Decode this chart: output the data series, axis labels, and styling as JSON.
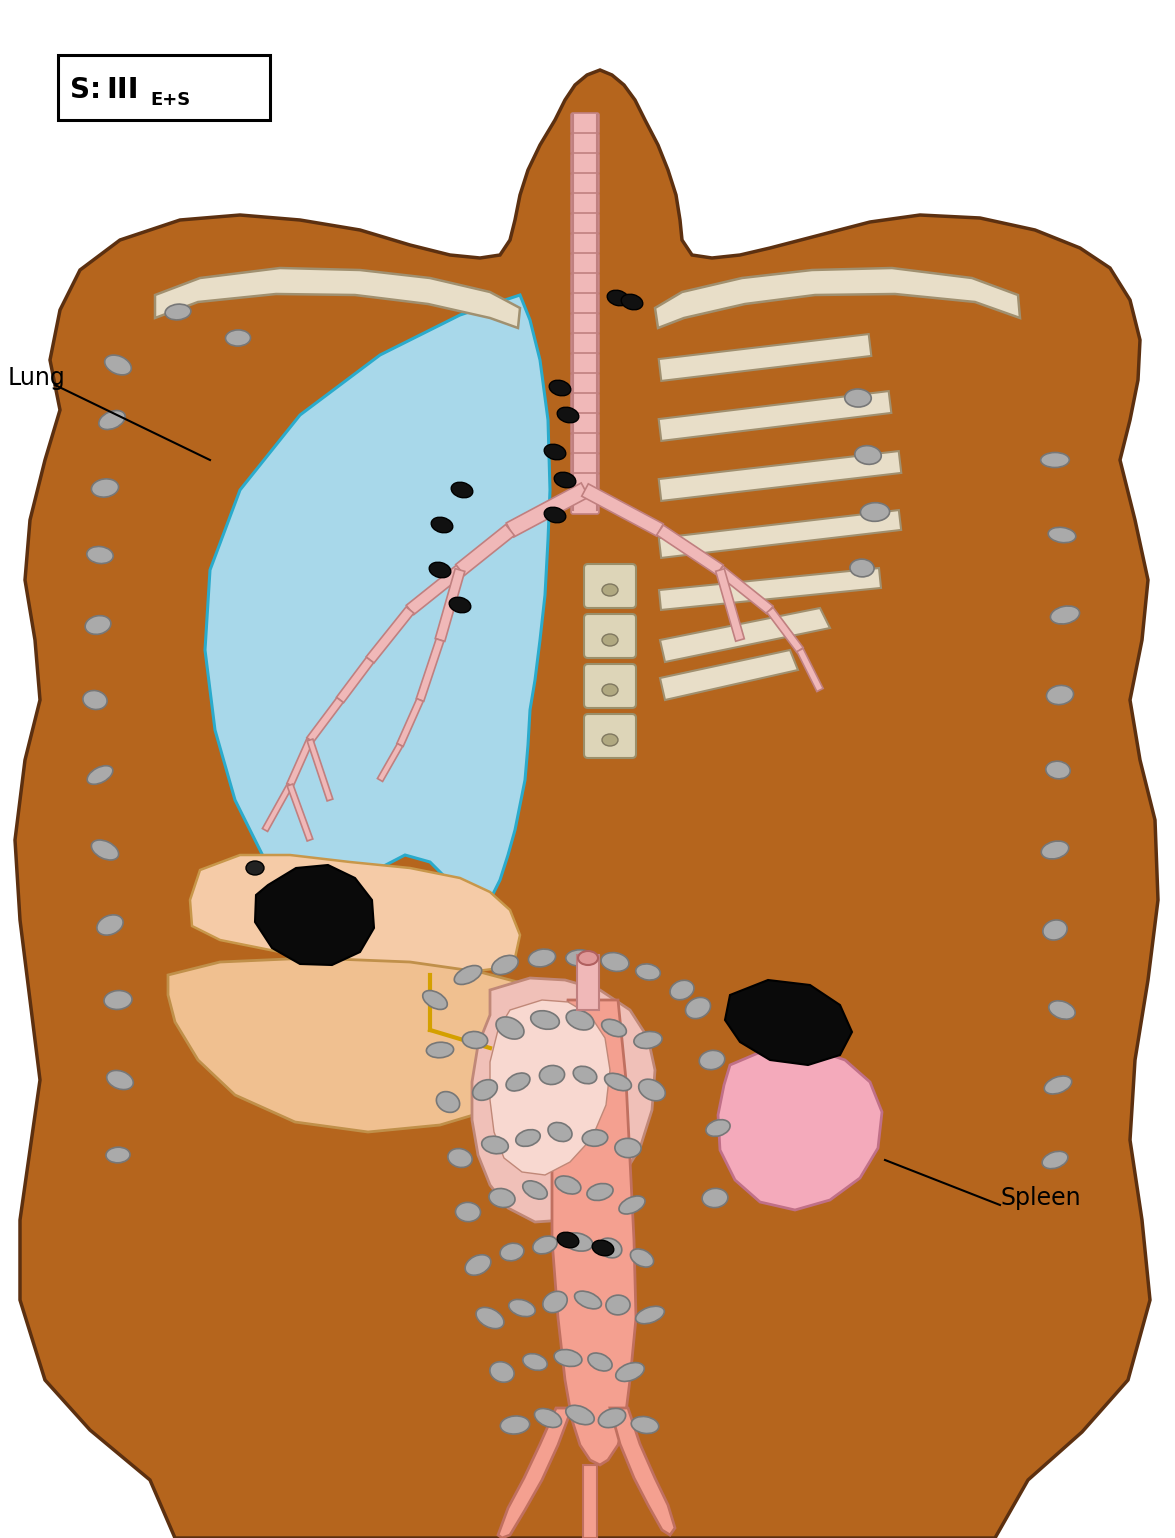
{
  "bg_color": "#FFFFFF",
  "skin_color": "#B5651D",
  "skin_outline": "#5C3010",
  "bone_color": "#E8DEC8",
  "bone_outline": "#A09070",
  "lung_blue": "#A8D8EA",
  "lung_outline": "#2AABCC",
  "diaphragm_color": "#F5CBA7",
  "diaphragm_outline": "#C8974A",
  "liver_color": "#F0C090",
  "liver_outline": "#C0904A",
  "stomach_color": "#F0C0B8",
  "stomach_outline": "#C08878",
  "spleen_color": "#F4AABB",
  "spleen_outline": "#C07088",
  "kidney_color": "#F4AABB",
  "trachea_color": "#F0B8B8",
  "trachea_outline": "#C08080",
  "aorta_color": "#F4A090",
  "aorta_outline": "#C07060",
  "black_mass": "#0a0a0a",
  "lymph_gray_fc": "#AAAAAA",
  "lymph_gray_ec": "#777777",
  "lymph_black_fc": "#111111",
  "label_lung": "Lung",
  "label_spleen": "Spleen",
  "title": "S: III",
  "title_sub": "E+S"
}
